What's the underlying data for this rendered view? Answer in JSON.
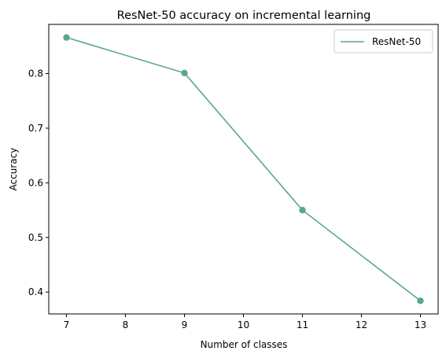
{
  "chart_data": {
    "type": "line",
    "title": "ResNet-50 accuracy on incremental learning",
    "xlabel": "Number of classes",
    "ylabel": "Accuracy",
    "x": [
      7,
      9,
      11,
      13
    ],
    "series": [
      {
        "name": "ResNet-50",
        "values": [
          0.866,
          0.801,
          0.55,
          0.384
        ],
        "color": "#5aa78a",
        "marker": "circle"
      }
    ],
    "xlim": [
      6.7,
      13.3
    ],
    "ylim": [
      0.36,
      0.89
    ],
    "xticks": [
      7,
      8,
      9,
      10,
      11,
      12,
      13
    ],
    "yticks": [
      0.4,
      0.5,
      0.6,
      0.7,
      0.8
    ],
    "grid": false,
    "legend_position": "top-right"
  }
}
